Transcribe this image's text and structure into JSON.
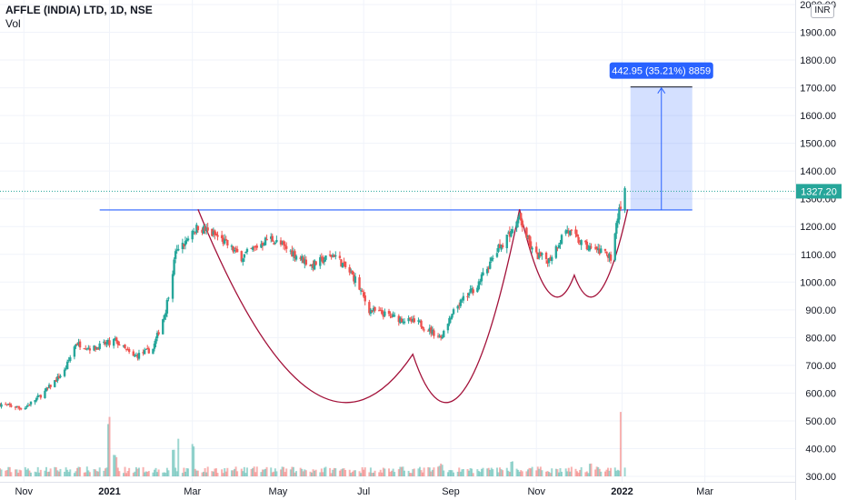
{
  "header": {
    "symbol": "AFFLE (INDIA) LTD, 1D, NSE",
    "volume_label": "Vol"
  },
  "currency": "INR",
  "colors": {
    "up": "#26a69a",
    "down": "#ef5350",
    "grid": "#f0f3fa",
    "trendline": "#2962ff",
    "cup": "#a3123a",
    "measure": "#2962ff",
    "price_tag": "#26a69a"
  },
  "chart_data": {
    "type": "candlestick",
    "title": "AFFLE (INDIA) LTD, 1D, NSE",
    "y_range": [
      300,
      2000
    ],
    "y_ticks": [
      2000,
      1900,
      1800,
      1700,
      1600,
      1500,
      1400,
      1300,
      1200,
      1100,
      1000,
      900,
      800,
      700,
      600,
      500,
      400,
      300
    ],
    "y_tick_labels": [
      "2000.00",
      "1900.00",
      "1800.00",
      "1700.00",
      "1600.00",
      "1500.00",
      "1400.00",
      "1300.00",
      "1200.00",
      "1100.00",
      "1000.00",
      "900.00",
      "800.00",
      "700.00",
      "600.00",
      "500.00",
      "400.00",
      "300.00"
    ],
    "x_range": [
      "2020-10-15",
      "2022-03-31"
    ],
    "x_ticks": [
      {
        "date": "2020-11-01",
        "label": "Nov",
        "bold": false
      },
      {
        "date": "2021-01-01",
        "label": "2021",
        "bold": true
      },
      {
        "date": "2021-03-01",
        "label": "Mar",
        "bold": false
      },
      {
        "date": "2021-05-01",
        "label": "May",
        "bold": false
      },
      {
        "date": "2021-07-01",
        "label": "Jul",
        "bold": false
      },
      {
        "date": "2021-09-01",
        "label": "Sep",
        "bold": false
      },
      {
        "date": "2021-11-01",
        "label": "Nov",
        "bold": false
      },
      {
        "date": "2022-01-01",
        "label": "2022",
        "bold": true
      },
      {
        "date": "2022-03-01",
        "label": "Mar",
        "bold": false
      }
    ],
    "price_path": [
      [
        "2020-10-15",
        560
      ],
      [
        "2020-11-01",
        545
      ],
      [
        "2020-11-15",
        600
      ],
      [
        "2020-11-30",
        680
      ],
      [
        "2020-12-08",
        780
      ],
      [
        "2020-12-20",
        760
      ],
      [
        "2021-01-05",
        790
      ],
      [
        "2021-01-18",
        730
      ],
      [
        "2021-02-01",
        760
      ],
      [
        "2021-02-10",
        900
      ],
      [
        "2021-02-17",
        1100
      ],
      [
        "2021-03-05",
        1200
      ],
      [
        "2021-03-20",
        1160
      ],
      [
        "2021-04-05",
        1090
      ],
      [
        "2021-04-25",
        1160
      ],
      [
        "2021-05-10",
        1110
      ],
      [
        "2021-05-25",
        1060
      ],
      [
        "2021-06-10",
        1100
      ],
      [
        "2021-06-25",
        1010
      ],
      [
        "2021-07-05",
        900
      ],
      [
        "2021-07-25",
        870
      ],
      [
        "2021-08-10",
        850
      ],
      [
        "2021-08-25",
        800
      ],
      [
        "2021-09-05",
        910
      ],
      [
        "2021-09-20",
        990
      ],
      [
        "2021-10-05",
        1120
      ],
      [
        "2021-10-20",
        1230
      ],
      [
        "2021-10-30",
        1100
      ],
      [
        "2021-11-10",
        1080
      ],
      [
        "2021-11-22",
        1190
      ],
      [
        "2021-12-05",
        1130
      ],
      [
        "2021-12-15",
        1110
      ],
      [
        "2021-12-24",
        1090
      ],
      [
        "2021-12-29",
        1240
      ],
      [
        "2022-01-03",
        1327
      ]
    ],
    "volume_spikes": [
      [
        "2021-01-01",
        0.55
      ],
      [
        "2021-02-20",
        0.37
      ],
      [
        "2021-03-01",
        0.3
      ],
      [
        "2021-01-05",
        0.2
      ],
      [
        "2021-02-15",
        0.25
      ],
      [
        "2021-08-25",
        0.12
      ],
      [
        "2021-10-15",
        0.14
      ],
      [
        "2021-12-10",
        0.12
      ],
      [
        "2022-01-01",
        0.6
      ]
    ],
    "last_price": {
      "value": 1327.2,
      "label": "1327.20"
    },
    "resistance_line": {
      "from": "2020-12-25",
      "to": "2022-02-20",
      "value": 1260
    },
    "cup_curve": {
      "from": "2021-03-05",
      "bottom": "2021-08-05",
      "bottom_value": 740,
      "to": "2021-10-20",
      "value": 1262
    },
    "handle_curve": {
      "from": "2021-10-20",
      "bottom": "2021-11-28",
      "bottom_value": 1025,
      "to": "2022-01-05",
      "value": 1262
    },
    "target_box": {
      "from": "2022-01-07",
      "to": "2022-02-20",
      "low": 1260,
      "high": 1703
    },
    "target_label": "442.95 (35.21%) 8859"
  }
}
